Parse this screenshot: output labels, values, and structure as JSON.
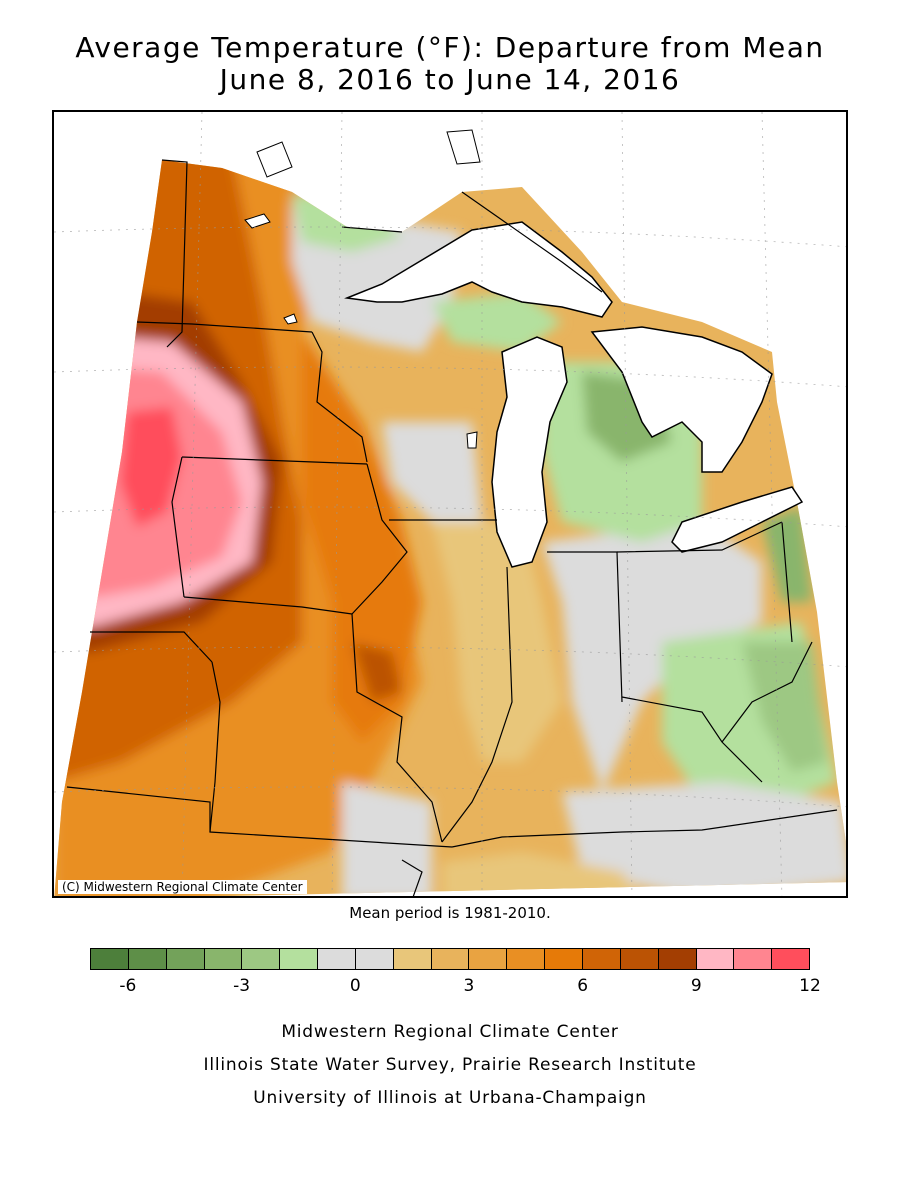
{
  "title_line1": "Average Temperature (°F): Departure from Mean",
  "title_line2": "June 8, 2016 to June 14, 2016",
  "map_credit": "(C) Midwestern Regional Climate Center",
  "mean_period": "Mean period is 1981-2010.",
  "legend": {
    "colors": [
      "#4d7f3b",
      "#5e8f48",
      "#73a25a",
      "#89b56c",
      "#9dc883",
      "#b4e09e",
      "#dcdcdc",
      "#dcdcdc",
      "#e8c67a",
      "#e8b35c",
      "#e9a341",
      "#e98f23",
      "#e67a08",
      "#d06406",
      "#bb5304",
      "#a33e02",
      "#ffb7c4",
      "#ff8590",
      "#ff4e5c"
    ],
    "tick_labels": [
      "-6",
      "-3",
      "0",
      "3",
      "6",
      "9",
      "12"
    ],
    "min": -7,
    "max": 12
  },
  "footer": {
    "line1": "Midwestern Regional Climate Center",
    "line2": "Illinois State Water Survey, Prairie Research Institute",
    "line3": "University of Illinois at Urbana-Champaign"
  }
}
